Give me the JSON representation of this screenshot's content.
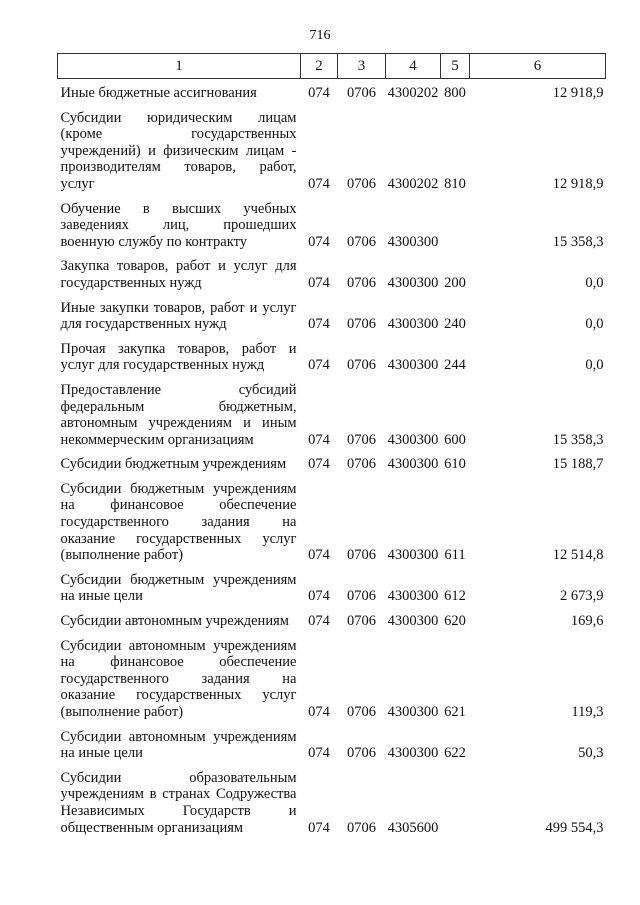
{
  "page_number": "716",
  "columns": [
    "1",
    "2",
    "3",
    "4",
    "5",
    "6"
  ],
  "rows": [
    {
      "lines": [
        "Иные бюджетные ассигнования"
      ],
      "c2": "074",
      "c3": "0706",
      "c4": "4300202",
      "c5": "800",
      "c6": "12 918,9"
    },
    {
      "lines": [
        "Субсидии юридическим лицам",
        "(кроме государственных",
        "учреждений) и физическим лицам -",
        "производителям товаров, работ,",
        "услуг"
      ],
      "c2": "074",
      "c3": "0706",
      "c4": "4300202",
      "c5": "810",
      "c6": "12 918,9"
    },
    {
      "lines": [
        "Обучение в высших учебных",
        "заведениях лиц, прошедших",
        "военную службу по контракту"
      ],
      "c2": "074",
      "c3": "0706",
      "c4": "4300300",
      "c5": "",
      "c6": "15 358,3"
    },
    {
      "lines": [
        "Закупка товаров, работ и услуг для",
        "государственных нужд"
      ],
      "c2": "074",
      "c3": "0706",
      "c4": "4300300",
      "c5": "200",
      "c6": "0,0"
    },
    {
      "lines": [
        "Иные закупки товаров, работ и услуг",
        "для государственных нужд"
      ],
      "c2": "074",
      "c3": "0706",
      "c4": "4300300",
      "c5": "240",
      "c6": "0,0"
    },
    {
      "lines": [
        "Прочая закупка товаров, работ и",
        "услуг для государственных нужд"
      ],
      "c2": "074",
      "c3": "0706",
      "c4": "4300300",
      "c5": "244",
      "c6": "0,0"
    },
    {
      "lines": [
        "Предоставление субсидий",
        "федеральным бюджетным,",
        "автономным учреждениям и иным",
        "некоммерческим организациям"
      ],
      "c2": "074",
      "c3": "0706",
      "c4": "4300300",
      "c5": "600",
      "c6": "15 358,3"
    },
    {
      "lines": [
        "Субсидии бюджетным учреждениям"
      ],
      "c2": "074",
      "c3": "0706",
      "c4": "4300300",
      "c5": "610",
      "c6": "15 188,7"
    },
    {
      "lines": [
        "Субсидии бюджетным учреждениям",
        "на финансовое обеспечение",
        "государственного задания на",
        "оказание государственных услуг",
        "(выполнение работ)"
      ],
      "c2": "074",
      "c3": "0706",
      "c4": "4300300",
      "c5": "611",
      "c6": "12 514,8"
    },
    {
      "lines": [
        "Субсидии бюджетным учреждениям",
        "на иные цели"
      ],
      "c2": "074",
      "c3": "0706",
      "c4": "4300300",
      "c5": "612",
      "c6": "2 673,9"
    },
    {
      "lines": [
        "Субсидии автономным учреждениям"
      ],
      "c2": "074",
      "c3": "0706",
      "c4": "4300300",
      "c5": "620",
      "c6": "169,6"
    },
    {
      "lines": [
        "Субсидии автономным учреждениям",
        "на финансовое обеспечение",
        "государственного задания на",
        "оказание государственных услуг",
        "(выполнение работ)"
      ],
      "c2": "074",
      "c3": "0706",
      "c4": "4300300",
      "c5": "621",
      "c6": "119,3"
    },
    {
      "lines": [
        "Субсидии автономным учреждениям",
        "на иные цели"
      ],
      "c2": "074",
      "c3": "0706",
      "c4": "4300300",
      "c5": "622",
      "c6": "50,3"
    },
    {
      "lines": [
        "Субсидии образовательным",
        "учреждениям в странах Содружества",
        "Независимых Государств и",
        "общественным организациям"
      ],
      "c2": "074",
      "c3": "0706",
      "c4": "4305600",
      "c5": "",
      "c6": "499 554,3"
    }
  ]
}
